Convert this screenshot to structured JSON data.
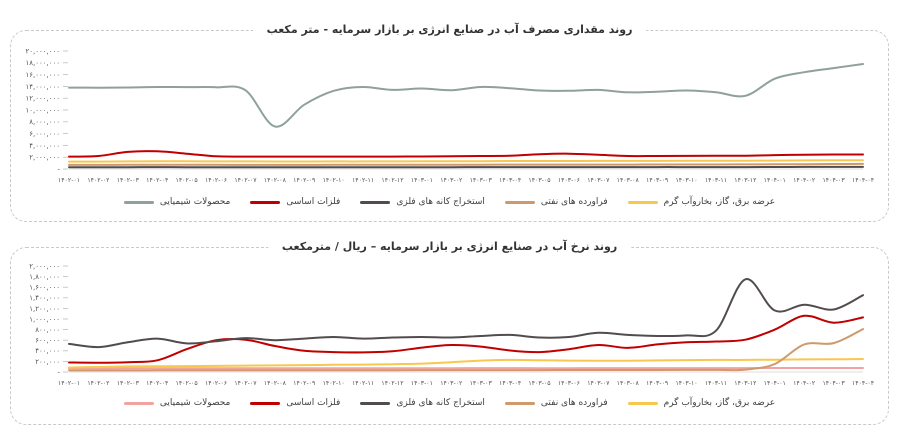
{
  "page": {
    "background": "#ffffff"
  },
  "chart_data": [
    {
      "type": "line",
      "title": "روند مقداری مصرف آب در صنایع انرژی بر بازار سرمایه - متر مکعب",
      "xlabel": "",
      "ylabel": "",
      "ylim": [
        0,
        20000000
      ],
      "grid": false,
      "legend_position": "bottom",
      "y_ticks": [
        "۲۰,۰۰۰,۰۰۰",
        "۱۸,۰۰۰,۰۰۰",
        "۱۶,۰۰۰,۰۰۰",
        "۱۴,۰۰۰,۰۰۰",
        "۱۲,۰۰۰,۰۰۰",
        "۱۰,۰۰۰,۰۰۰",
        "۸,۰۰۰,۰۰۰",
        "۶,۰۰۰,۰۰۰",
        "۴,۰۰۰,۰۰۰",
        "۲,۰۰۰,۰۰۰",
        "-"
      ],
      "x_categories": [
        "۱۴۰۲-۰۱",
        "۱۴۰۲-۰۲",
        "۱۴۰۲-۰۳",
        "۱۴۰۲-۰۴",
        "۱۴۰۲-۰۵",
        "۱۴۰۲-۰۶",
        "۱۴۰۲-۰۷",
        "۱۴۰۲-۰۸",
        "۱۴۰۲-۰۹",
        "۱۴۰۲-۱۰",
        "۱۴۰۲-۱۱",
        "۱۴۰۲-۱۲",
        "۱۴۰۳-۰۱",
        "۱۴۰۳-۰۲",
        "۱۴۰۳-۰۳",
        "۱۴۰۳-۰۴",
        "۱۴۰۳-۰۵",
        "۱۴۰۳-۰۶",
        "۱۴۰۳-۰۷",
        "۱۴۰۳-۰۸",
        "۱۴۰۳-۰۹",
        "۱۴۰۳-۱۰",
        "۱۴۰۳-۱۱",
        "۱۴۰۳-۱۲",
        "۱۴۰۴-۰۱",
        "۱۴۰۴-۰۲",
        "۱۴۰۴-۰۳",
        "۱۴۰۴-۰۴"
      ],
      "draw_order": [
        2,
        3,
        4,
        1,
        0
      ],
      "series": [
        {
          "name": "محصولات شیمیایی",
          "color": "#8FA09E",
          "values": [
            13800000,
            13780000,
            13820000,
            13900000,
            13880000,
            13850000,
            13350000,
            7200000,
            10900000,
            13250000,
            13900000,
            13400000,
            13650000,
            13350000,
            13900000,
            13700000,
            13300000,
            13250000,
            13400000,
            13000000,
            13100000,
            13300000,
            13000000,
            12400000,
            15300000,
            16400000,
            17100000,
            17800000
          ]
        },
        {
          "name": "فلزات اساسی",
          "color": "#C00000",
          "values": [
            2100000,
            2200000,
            2900000,
            3000000,
            2600000,
            2150000,
            2100000,
            2100000,
            2100000,
            2100000,
            2100000,
            2100000,
            2120000,
            2150000,
            2200000,
            2250000,
            2500000,
            2600000,
            2400000,
            2200000,
            2200000,
            2220000,
            2250000,
            2250000,
            2350000,
            2420000,
            2450000,
            2450000
          ]
        },
        {
          "name": "استخراج کانه های فلزی",
          "color": "#524C4E",
          "values": [
            300000,
            300000,
            310000,
            320000,
            310000,
            300000,
            300000,
            300000,
            300000,
            300000,
            300000,
            300000,
            310000,
            310000,
            320000,
            320000,
            320000,
            320000,
            320000,
            320000,
            330000,
            330000,
            330000,
            330000,
            340000,
            350000,
            350000,
            360000
          ]
        },
        {
          "name": "فراورده های نفتی",
          "color": "#CE9A6B",
          "values": [
            700000,
            700000,
            710000,
            720000,
            720000,
            710000,
            700000,
            700000,
            700000,
            710000,
            710000,
            710000,
            720000,
            720000,
            730000,
            740000,
            740000,
            740000,
            750000,
            750000,
            760000,
            770000,
            770000,
            780000,
            800000,
            820000,
            840000,
            860000
          ]
        },
        {
          "name": "عرضه برق، گاز، بخاروآب گرم",
          "color": "#F8C84E",
          "values": [
            1250000,
            1260000,
            1280000,
            1300000,
            1300000,
            1290000,
            1280000,
            1270000,
            1270000,
            1280000,
            1280000,
            1290000,
            1300000,
            1310000,
            1330000,
            1350000,
            1360000,
            1360000,
            1370000,
            1370000,
            1380000,
            1390000,
            1400000,
            1410000,
            1430000,
            1450000,
            1470000,
            1490000
          ]
        }
      ]
    },
    {
      "type": "line",
      "title": "روند نرخ آب در صنایع انرژی بر بازار سرمایه – ریال / مترمکعب",
      "xlabel": "",
      "ylabel": "",
      "ylim": [
        0,
        2000000
      ],
      "grid": false,
      "legend_position": "bottom",
      "y_ticks": [
        "۲,۰۰۰,۰۰۰",
        "۱,۸۰۰,۰۰۰",
        "۱,۶۰۰,۰۰۰",
        "۱,۴۰۰,۰۰۰",
        "۱,۲۰۰,۰۰۰",
        "۱,۰۰۰,۰۰۰",
        "۸۰۰,۰۰۰",
        "۶۰۰,۰۰۰",
        "۴۰۰,۰۰۰",
        "۲۰۰,۰۰۰",
        "-"
      ],
      "x_categories": [
        "۱۴۰۲-۰۱",
        "۱۴۰۲-۰۲",
        "۱۴۰۲-۰۳",
        "۱۴۰۲-۰۴",
        "۱۴۰۲-۰۵",
        "۱۴۰۲-۰۶",
        "۱۴۰۲-۰۷",
        "۱۴۰۲-۰۸",
        "۱۴۰۲-۰۹",
        "۱۴۰۲-۱۰",
        "۱۴۰۲-۱۱",
        "۱۴۰۲-۱۲",
        "۱۴۰۳-۰۱",
        "۱۴۰۳-۰۲",
        "۱۴۰۳-۰۳",
        "۱۴۰۳-۰۴",
        "۱۴۰۳-۰۵",
        "۱۴۰۳-۰۶",
        "۱۴۰۳-۰۷",
        "۱۴۰۳-۰۸",
        "۱۴۰۳-۰۹",
        "۱۴۰۳-۱۰",
        "۱۴۰۳-۱۱",
        "۱۴۰۳-۱۲",
        "۱۴۰۴-۰۱",
        "۱۴۰۴-۰۲",
        "۱۴۰۴-۰۳",
        "۱۴۰۴-۰۴"
      ],
      "draw_order": [
        0,
        4,
        3,
        1,
        2
      ],
      "series": [
        {
          "name": "محصولات شیمیایی",
          "color": "#F2A3A0",
          "values": [
            70000,
            68000,
            70000,
            72000,
            71000,
            70000,
            70000,
            69000,
            70000,
            71000,
            70000,
            70000,
            72000,
            72000,
            73000,
            73000,
            72000,
            72000,
            73000,
            73000,
            74000,
            74000,
            74000,
            74000,
            75000,
            75000,
            76000,
            76000
          ]
        },
        {
          "name": "فلزات اساسی",
          "color": "#C00000",
          "values": [
            180000,
            175000,
            185000,
            220000,
            430000,
            600000,
            610000,
            490000,
            400000,
            375000,
            370000,
            390000,
            460000,
            510000,
            480000,
            405000,
            375000,
            430000,
            510000,
            455000,
            520000,
            560000,
            575000,
            610000,
            800000,
            1060000,
            930000,
            1030000
          ]
        },
        {
          "name": "استخراج کانه های فلزی",
          "color": "#524C4E",
          "values": [
            530000,
            470000,
            560000,
            630000,
            540000,
            580000,
            640000,
            600000,
            630000,
            660000,
            630000,
            650000,
            660000,
            650000,
            680000,
            700000,
            650000,
            660000,
            740000,
            700000,
            680000,
            690000,
            780000,
            1750000,
            1160000,
            1270000,
            1180000,
            1450000
          ]
        },
        {
          "name": "فراورده های نفتی",
          "color": "#CE9A6B",
          "values": [
            30000,
            30000,
            30000,
            32000,
            32000,
            32000,
            33000,
            33000,
            33000,
            34000,
            34000,
            34000,
            35000,
            35000,
            36000,
            36000,
            36000,
            37000,
            37000,
            38000,
            38000,
            39000,
            40000,
            45000,
            150000,
            520000,
            545000,
            810000
          ]
        },
        {
          "name": "عرضه برق، گاز، بخاروآب گرم",
          "color": "#F8C84E",
          "values": [
            85000,
            95000,
            105000,
            110000,
            112000,
            115000,
            120000,
            125000,
            130000,
            135000,
            140000,
            148000,
            158000,
            185000,
            215000,
            228000,
            222000,
            215000,
            213000,
            213000,
            218000,
            224000,
            228000,
            228000,
            233000,
            238000,
            240000,
            245000
          ]
        }
      ]
    }
  ]
}
